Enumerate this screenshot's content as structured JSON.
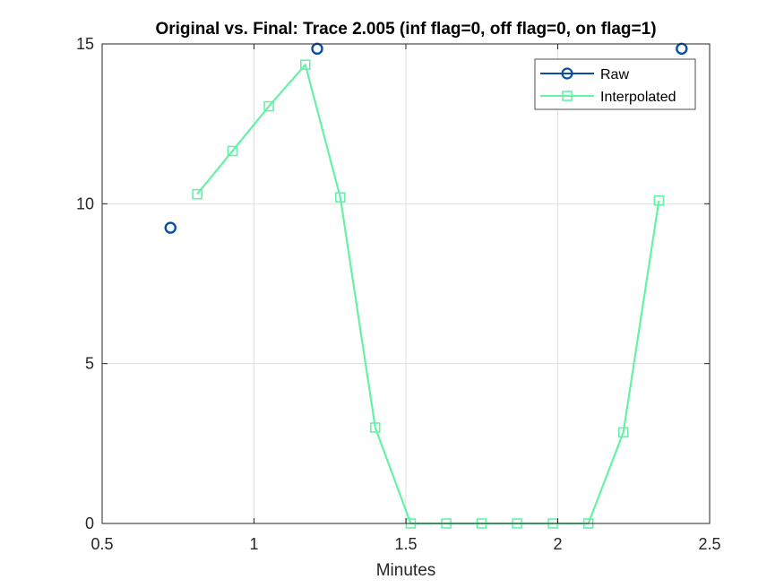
{
  "chart_data": {
    "type": "line",
    "title": "Original vs. Final: Trace 2.005 (inf flag=0, off flag=0, on flag=1)",
    "xlabel": "Minutes",
    "ylabel": "",
    "xlim": [
      0.5,
      2.5
    ],
    "ylim": [
      0,
      15
    ],
    "xticks": [
      0.5,
      1,
      1.5,
      2,
      2.5
    ],
    "xtick_labels": [
      "0.5",
      "1",
      "1.5",
      "2",
      "2.5"
    ],
    "yticks": [
      0,
      5,
      10,
      15
    ],
    "ytick_labels": [
      "0",
      "5",
      "10",
      "15"
    ],
    "grid": true,
    "legend_position": "top-right",
    "series": [
      {
        "name": "Raw",
        "color": "#0b4ea2",
        "marker": "circle",
        "line": false,
        "x": [
          0.725,
          1.208,
          2.408
        ],
        "y": [
          9.25,
          14.85,
          14.85
        ]
      },
      {
        "name": "Interpolated",
        "color": "#66f2a6",
        "marker": "square",
        "line": true,
        "x": [
          0.813,
          0.929,
          1.049,
          1.169,
          1.284,
          1.399,
          1.516,
          1.633,
          1.749,
          1.866,
          1.984,
          2.101,
          2.216,
          2.333
        ],
        "y": [
          10.3,
          11.65,
          13.05,
          14.35,
          10.2,
          3.0,
          0,
          0,
          0,
          0,
          0,
          0,
          2.85,
          10.1
        ]
      }
    ]
  }
}
